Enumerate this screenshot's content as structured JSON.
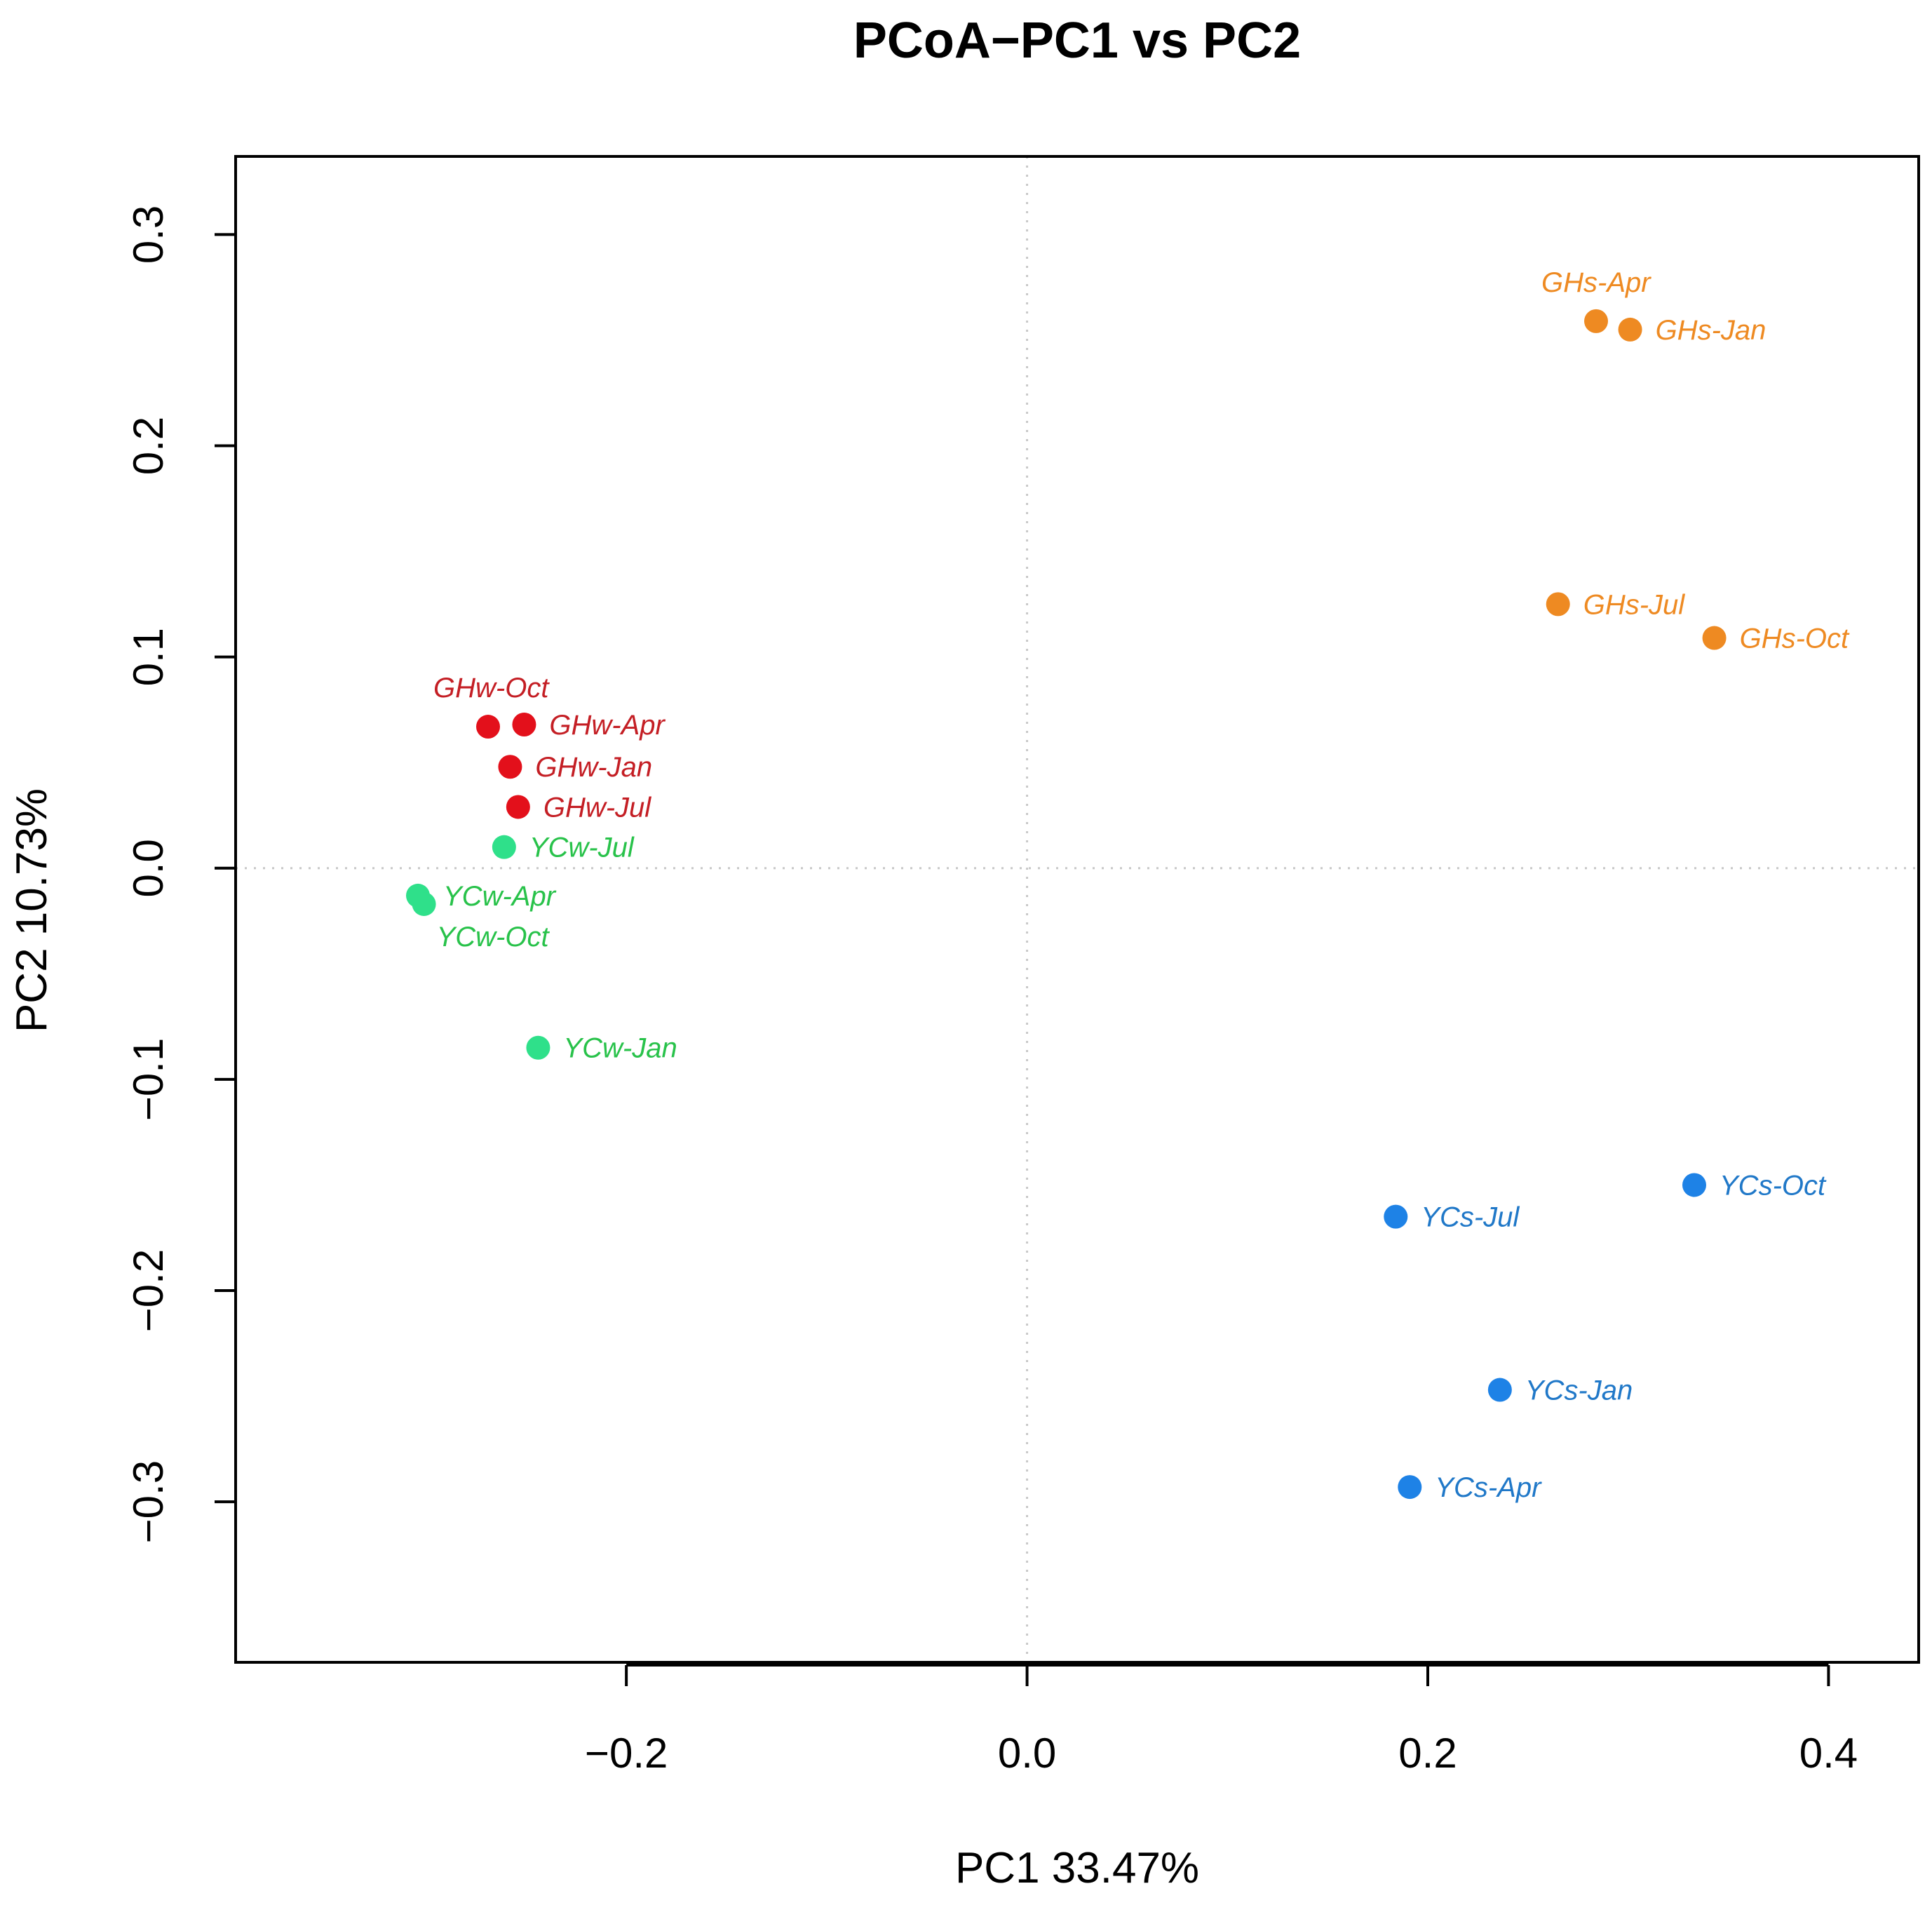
{
  "chart_data": {
    "type": "scatter",
    "title": "PCoA−PC1 vs PC2",
    "xlabel": "PC1 33.47%",
    "ylabel": "PC2 10.73%",
    "xlim": [
      -0.395,
      0.445
    ],
    "ylim": [
      -0.376,
      0.337
    ],
    "xticks": [
      -0.2,
      0.0,
      0.2,
      0.4
    ],
    "xtick_labels": [
      "−0.2",
      "0.0",
      "0.2",
      "0.4"
    ],
    "yticks": [
      -0.3,
      -0.2,
      -0.1,
      0.0,
      0.1,
      0.2,
      0.3
    ],
    "ytick_labels": [
      "−0.3",
      "−0.2",
      "−0.1",
      "0.0",
      "0.1",
      "0.2",
      "0.3"
    ],
    "reference_lines": {
      "x": 0,
      "y": 0,
      "style": "dotted"
    },
    "series": [
      {
        "name": "GHs",
        "color": "#EE8A22",
        "points": [
          {
            "label": "GHs-Apr",
            "x": 0.284,
            "y": 0.259,
            "label_pos": "above"
          },
          {
            "label": "GHs-Jan",
            "x": 0.301,
            "y": 0.255,
            "label_pos": "right"
          },
          {
            "label": "GHs-Jul",
            "x": 0.265,
            "y": 0.125,
            "label_pos": "right"
          },
          {
            "label": "GHs-Oct",
            "x": 0.343,
            "y": 0.109,
            "label_pos": "right"
          }
        ]
      },
      {
        "name": "GHw",
        "color": "#E3101B",
        "label_color": "#C41E24",
        "points": [
          {
            "label": "GHw-Oct",
            "x": -0.269,
            "y": 0.067,
            "label_pos": "above"
          },
          {
            "label": "GHw-Apr",
            "x": -0.251,
            "y": 0.068,
            "label_pos": "right"
          },
          {
            "label": "GHw-Jan",
            "x": -0.258,
            "y": 0.048,
            "label_pos": "right"
          },
          {
            "label": "GHw-Jul",
            "x": -0.254,
            "y": 0.029,
            "label_pos": "right"
          }
        ]
      },
      {
        "name": "YCw",
        "color": "#2FE08A",
        "label_color": "#28C24A",
        "points": [
          {
            "label": "YCw-Jul",
            "x": -0.261,
            "y": 0.01,
            "label_pos": "right"
          },
          {
            "label": "YCw-Apr",
            "x": -0.304,
            "y": -0.013,
            "label_pos": "right"
          },
          {
            "label": "YCw-Oct",
            "x": -0.301,
            "y": -0.017,
            "label_pos": "below"
          },
          {
            "label": "YCw-Jan",
            "x": -0.244,
            "y": -0.085,
            "label_pos": "right"
          }
        ]
      },
      {
        "name": "YCs",
        "color": "#1E82E6",
        "label_color": "#2078C8",
        "points": [
          {
            "label": "YCs-Oct",
            "x": 0.333,
            "y": -0.15,
            "label_pos": "right"
          },
          {
            "label": "YCs-Jul",
            "x": 0.184,
            "y": -0.165,
            "label_pos": "right"
          },
          {
            "label": "YCs-Jan",
            "x": 0.236,
            "y": -0.247,
            "label_pos": "right"
          },
          {
            "label": "YCs-Apr",
            "x": 0.191,
            "y": -0.293,
            "label_pos": "right"
          }
        ]
      }
    ]
  }
}
